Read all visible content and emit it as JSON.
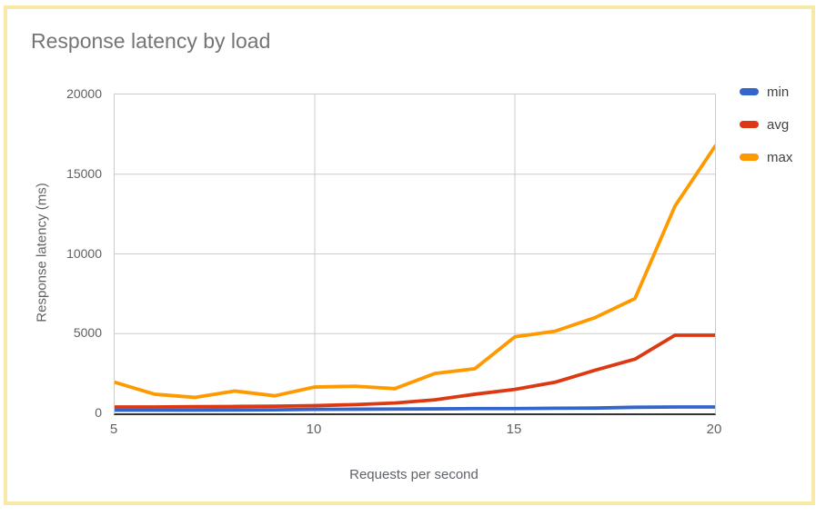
{
  "chart": {
    "title": "Response latency by load"
  },
  "chart_data": {
    "type": "line",
    "title": "Response latency by load",
    "xlabel": "Requests per second",
    "ylabel": "Response latency (ms)",
    "x": [
      5,
      6,
      7,
      8,
      9,
      10,
      11,
      12,
      13,
      14,
      15,
      16,
      17,
      18,
      19,
      20
    ],
    "series": [
      {
        "name": "min",
        "color": "#3366CC",
        "values": [
          200,
          200,
          200,
          210,
          220,
          250,
          260,
          270,
          280,
          300,
          300,
          320,
          330,
          380,
          400,
          400
        ]
      },
      {
        "name": "avg",
        "color": "#DC3912",
        "values": [
          400,
          400,
          420,
          430,
          450,
          480,
          550,
          650,
          850,
          1200,
          1500,
          1950,
          2700,
          3400,
          4900,
          4900
        ]
      },
      {
        "name": "max",
        "color": "#FF9900",
        "values": [
          1950,
          1200,
          1000,
          1400,
          1100,
          1650,
          1700,
          1550,
          2500,
          2800,
          4800,
          5150,
          6000,
          7200,
          13000,
          16750
        ]
      }
    ],
    "xlim": [
      5,
      20
    ],
    "ylim": [
      0,
      20000
    ],
    "x_ticks": [
      5,
      10,
      15,
      20
    ],
    "y_ticks": [
      0,
      5000,
      10000,
      15000,
      20000
    ],
    "grid": true,
    "legend_position": "right"
  },
  "colors": {
    "card_border": "#F8E9A6",
    "grid": "#CCCCCC",
    "axis_baseline": "#333333",
    "title_text": "#757575",
    "tick_text": "#616161",
    "axis_title_text": "#5F6368",
    "legend_text": "#424242"
  }
}
